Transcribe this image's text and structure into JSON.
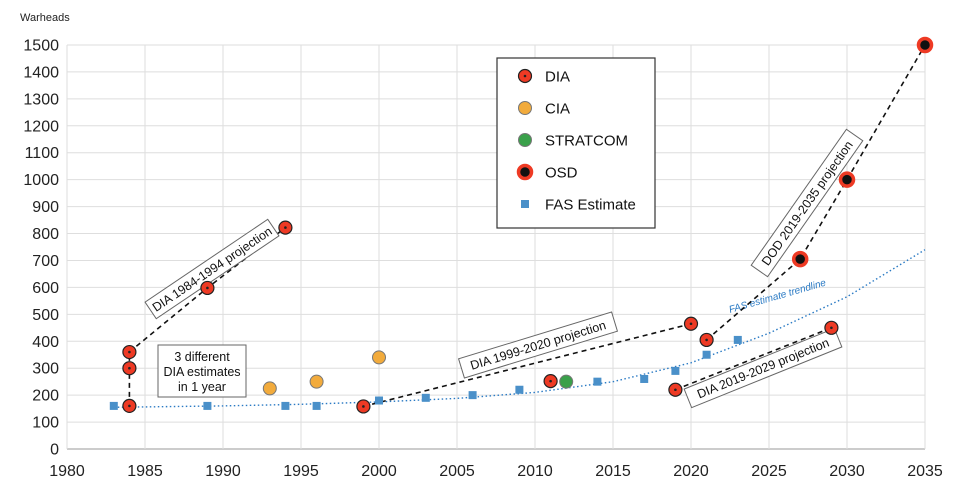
{
  "chart_data": {
    "type": "scatter",
    "ylabel": "Warheads",
    "xlim": [
      1980,
      2035
    ],
    "ylim": [
      0,
      1500
    ],
    "x_ticks": [
      "1980",
      "1985",
      "1990",
      "1995",
      "2000",
      "2005",
      "2010",
      "2015",
      "2020",
      "2025",
      "2030",
      "2035"
    ],
    "y_ticks": [
      "0",
      "100",
      "200",
      "300",
      "400",
      "500",
      "600",
      "700",
      "800",
      "900",
      "1000",
      "1100",
      "1200",
      "1300",
      "1400",
      "1500"
    ],
    "grid": "horizontal and vertical",
    "legend_position": "top-center",
    "series": [
      {
        "name": "DIA",
        "color": "#ee3a24",
        "marker": "circle",
        "points": [
          [
            1984,
            160
          ],
          [
            1984,
            300
          ],
          [
            1984,
            360
          ],
          [
            1989,
            598
          ],
          [
            1994,
            822
          ],
          [
            1999,
            158
          ],
          [
            2011,
            252
          ],
          [
            2019,
            220
          ],
          [
            2020,
            465
          ],
          [
            2021,
            405
          ],
          [
            2029,
            450
          ]
        ]
      },
      {
        "name": "CIA",
        "color": "#f2ab3c",
        "marker": "circle",
        "points": [
          [
            1993,
            225
          ],
          [
            1996,
            250
          ],
          [
            2000,
            340
          ]
        ]
      },
      {
        "name": "STRATCOM",
        "color": "#3aa04a",
        "marker": "circle",
        "points": [
          [
            2012,
            250
          ]
        ]
      },
      {
        "name": "OSD",
        "color": "#111111",
        "marker": "circle-red-edge",
        "points": [
          [
            2027,
            705
          ],
          [
            2030,
            1000
          ],
          [
            2035,
            1500
          ]
        ]
      },
      {
        "name": "FAS Estimate",
        "color": "#4a90c9",
        "marker": "square",
        "points": [
          [
            1983,
            160
          ],
          [
            1989,
            160
          ],
          [
            1994,
            160
          ],
          [
            1996,
            160
          ],
          [
            1999,
            165
          ],
          [
            2000,
            180
          ],
          [
            2003,
            190
          ],
          [
            2006,
            200
          ],
          [
            2009,
            220
          ],
          [
            2014,
            250
          ],
          [
            2017,
            260
          ],
          [
            2019,
            290
          ],
          [
            2021,
            350
          ],
          [
            2023,
            405
          ]
        ]
      }
    ],
    "trendline": {
      "label": "FAS estimate trendline",
      "points": [
        [
          1983,
          155
        ],
        [
          1990,
          160
        ],
        [
          1995,
          166
        ],
        [
          2000,
          175
        ],
        [
          2005,
          188
        ],
        [
          2010,
          210
        ],
        [
          2015,
          250
        ],
        [
          2020,
          320
        ],
        [
          2025,
          430
        ],
        [
          2030,
          565
        ],
        [
          2035,
          740
        ]
      ]
    },
    "projections": [
      {
        "label": "DIA 1984-1994 projection",
        "points": [
          [
            1984,
            360
          ],
          [
            1989,
            598
          ],
          [
            1994,
            822
          ]
        ]
      },
      {
        "label": "DIA 1999-2020 projection",
        "points": [
          [
            1999,
            158
          ],
          [
            2020,
            465
          ]
        ]
      },
      {
        "label": "DOD 2019-2035 projection",
        "points": [
          [
            2021,
            405
          ],
          [
            2027,
            705
          ],
          [
            2030,
            1000
          ],
          [
            2035,
            1500
          ]
        ]
      },
      {
        "label": "DIA 2019-2029 projection",
        "points": [
          [
            2019,
            220
          ],
          [
            2029,
            450
          ]
        ]
      }
    ],
    "annotations": [
      {
        "lines": [
          "3 different",
          "DIA estimates",
          "in 1 year"
        ]
      }
    ],
    "vertical_link": [
      [
        1984,
        160
      ],
      [
        1984,
        360
      ]
    ]
  }
}
